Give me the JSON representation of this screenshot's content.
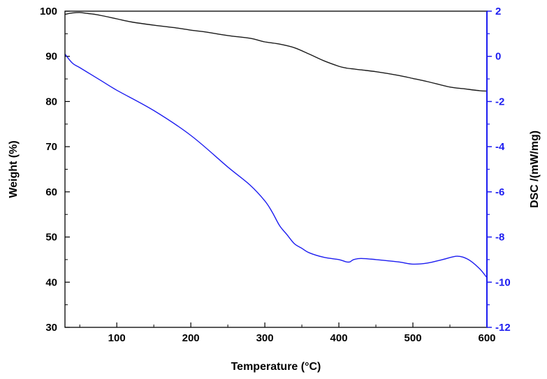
{
  "chart_data": {
    "type": "line",
    "title": "",
    "xlabel": "Temperature (°C)",
    "ylabel": "Weight (%)",
    "y2label": "DSC /(mW/mg)",
    "xlim": [
      30,
      600
    ],
    "ylim": [
      30,
      100
    ],
    "y2lim": [
      -12,
      2
    ],
    "x_ticks": [
      100,
      200,
      300,
      400,
      500,
      600
    ],
    "y_ticks": [
      30,
      40,
      50,
      60,
      70,
      80,
      90,
      100
    ],
    "y2_ticks": [
      -12,
      -10,
      -8,
      -6,
      -4,
      -2,
      0,
      2
    ],
    "x_tick_labels": [
      "100",
      "200",
      "300",
      "400",
      "500",
      "600"
    ],
    "y_tick_labels": [
      "30",
      "40",
      "50",
      "60",
      "70",
      "80",
      "90",
      "100"
    ],
    "y2_tick_labels": [
      "-12",
      "-10",
      "-8",
      "-6",
      "-4",
      "-2",
      "0",
      "2"
    ],
    "grid": false,
    "colors": {
      "weight": "#1a1a1a",
      "dsc": "#1c1cf0",
      "axis_right": "#1c1cf0",
      "axis": "#000000"
    },
    "series": [
      {
        "name": "Weight",
        "axis": "left",
        "x": [
          30,
          40,
          50,
          60,
          70,
          80,
          100,
          120,
          150,
          180,
          200,
          220,
          250,
          280,
          300,
          320,
          340,
          360,
          380,
          400,
          410,
          420,
          430,
          450,
          480,
          500,
          520,
          550,
          570,
          590,
          600
        ],
        "y": [
          99.3,
          99.6,
          99.7,
          99.5,
          99.3,
          99.0,
          98.3,
          97.6,
          96.9,
          96.3,
          95.8,
          95.4,
          94.6,
          94.0,
          93.2,
          92.7,
          91.9,
          90.5,
          89.0,
          87.8,
          87.4,
          87.2,
          87.0,
          86.6,
          85.8,
          85.1,
          84.4,
          83.2,
          82.8,
          82.4,
          82.3
        ]
      },
      {
        "name": "DSC",
        "axis": "right",
        "x": [
          30,
          40,
          50,
          60,
          80,
          100,
          150,
          200,
          250,
          280,
          300,
          310,
          320,
          330,
          340,
          350,
          360,
          380,
          400,
          410,
          415,
          420,
          430,
          450,
          480,
          500,
          520,
          540,
          560,
          575,
          590,
          600
        ],
        "y": [
          0.1,
          -0.3,
          -0.5,
          -0.7,
          -1.1,
          -1.5,
          -2.4,
          -3.5,
          -4.9,
          -5.7,
          -6.4,
          -6.9,
          -7.5,
          -7.9,
          -8.3,
          -8.5,
          -8.7,
          -8.9,
          -9.0,
          -9.1,
          -9.1,
          -9.0,
          -8.95,
          -9.0,
          -9.1,
          -9.2,
          -9.15,
          -9.0,
          -8.85,
          -9.0,
          -9.4,
          -9.8
        ]
      }
    ]
  }
}
